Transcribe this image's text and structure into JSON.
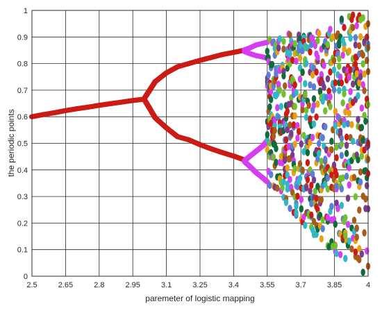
{
  "chart_data": {
    "type": "scatter",
    "xlabel": "paremeter of logistic mapping",
    "ylabel": "the periodic points",
    "xlim": [
      2.5,
      4
    ],
    "ylim": [
      0,
      1
    ],
    "x_ticks": [
      "2.5",
      "2.65",
      "2.8",
      "2.95",
      "3.1",
      "3.25",
      "3.4",
      "3.55",
      "3.7",
      "3.85",
      "4"
    ],
    "y_ticks": [
      "0",
      "0.1",
      "0.2",
      "0.3",
      "0.4",
      "0.5",
      "0.6",
      "0.7",
      "0.8",
      "0.9",
      "1"
    ],
    "grid": true,
    "series": [
      {
        "color": "#cc1a14",
        "x": [
          2.5,
          2.55,
          2.6,
          2.65,
          2.7,
          2.75,
          2.8,
          2.85,
          2.9,
          2.95,
          2.99
        ],
        "y": [
          0.6,
          0.608,
          0.615,
          0.623,
          0.63,
          0.636,
          0.643,
          0.649,
          0.655,
          0.661,
          0.665
        ]
      },
      {
        "color": "#cc1a14",
        "x": [
          3.0,
          3.05,
          3.1,
          3.15,
          3.2,
          3.25,
          3.3,
          3.35,
          3.4,
          3.44
        ],
        "y": [
          0.667,
          0.732,
          0.765,
          0.788,
          0.8,
          0.812,
          0.823,
          0.834,
          0.842,
          0.849
        ]
      },
      {
        "color": "#cc1a14",
        "x": [
          3.0,
          3.05,
          3.1,
          3.15,
          3.2,
          3.25,
          3.3,
          3.35,
          3.4,
          3.44
        ],
        "y": [
          0.667,
          0.596,
          0.558,
          0.525,
          0.513,
          0.495,
          0.479,
          0.465,
          0.452,
          0.44
        ]
      },
      {
        "color": "#d63ef2",
        "x": [
          3.45,
          3.47,
          3.5,
          3.53,
          3.55
        ],
        "y": [
          0.852,
          0.858,
          0.87,
          0.876,
          0.88
        ]
      },
      {
        "color": "#d63ef2",
        "x": [
          3.45,
          3.47,
          3.5,
          3.53,
          3.55
        ],
        "y": [
          0.845,
          0.838,
          0.83,
          0.825,
          0.82
        ]
      },
      {
        "color": "#d63ef2",
        "x": [
          3.45,
          3.47,
          3.5,
          3.53,
          3.55
        ],
        "y": [
          0.435,
          0.45,
          0.47,
          0.49,
          0.51
        ]
      },
      {
        "color": "#d63ef2",
        "x": [
          3.45,
          3.47,
          3.5,
          3.53,
          3.55
        ],
        "y": [
          0.43,
          0.415,
          0.39,
          0.37,
          0.355
        ]
      }
    ],
    "chaotic_region": {
      "x_range": [
        3.55,
        4
      ],
      "lower_edge": [
        [
          3.55,
          0.35
        ],
        [
          3.7,
          0.2
        ],
        [
          3.85,
          0.08
        ],
        [
          4,
          0.0
        ]
      ],
      "upper_edge": [
        [
          3.55,
          0.89
        ],
        [
          3.7,
          0.925
        ],
        [
          3.85,
          0.962
        ],
        [
          4,
          1.0
        ]
      ],
      "colors": [
        "#cc1a14",
        "#e8a013",
        "#5b7fd6",
        "#7b3c8c",
        "#6fbf2e",
        "#2fb8c6",
        "#d63ef2",
        "#0f6b3a",
        "#a85c1a"
      ]
    }
  }
}
